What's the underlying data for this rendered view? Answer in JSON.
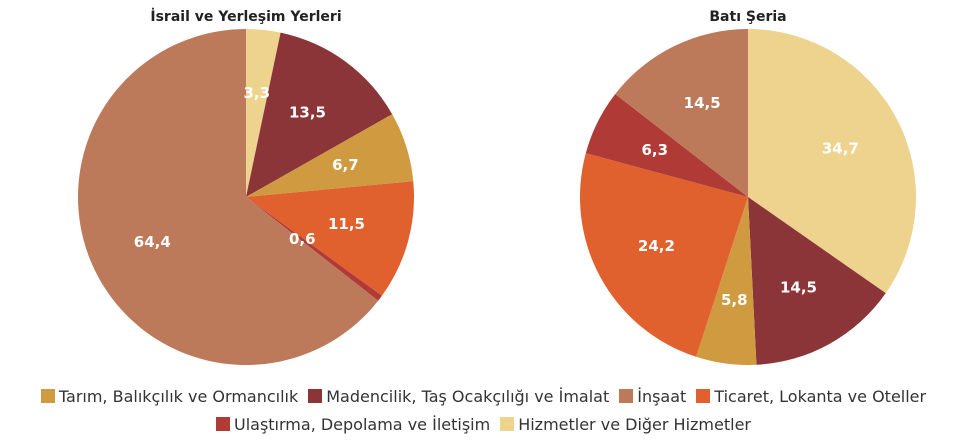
{
  "chart_data": [
    {
      "type": "pie",
      "title": "İsrail ve Yerleşim Yerleri",
      "categories": [
        "Tarım, Balıkçılık ve Ormancılık",
        "Madencilik, Taş Ocakçılığı ve İmalat",
        "İnşaat",
        "Ticaret, Lokanta ve Oteller",
        "Ulaştırma, Depolama ve İletişim",
        "Hizmetler ve Diğer Hizmetler"
      ],
      "values": [
        6.7,
        13.5,
        64.4,
        11.5,
        0.6,
        3.3
      ],
      "value_labels": [
        "6,7",
        "13,5",
        "64,4",
        "11,5",
        "0,6",
        "3,3"
      ],
      "colors": [
        "#d09a40",
        "#8b3538",
        "#bd7a5a",
        "#e0602e",
        "#b03a35",
        "#eed38f"
      ]
    },
    {
      "type": "pie",
      "title": "Batı Şeria",
      "categories": [
        "Tarım, Balıkçılık ve Ormancılık",
        "Madencilik, Taş Ocakçılığı ve İmalat",
        "İnşaat",
        "Ticaret, Lokanta ve Oteller",
        "Ulaştırma, Depolama ve İletişim",
        "Hizmetler ve Diğer Hizmetler"
      ],
      "values": [
        5.8,
        14.5,
        14.5,
        24.2,
        6.3,
        34.7
      ],
      "value_labels": [
        "5,8",
        "14,5",
        "14,5",
        "24,2",
        "6,3",
        "34,7"
      ],
      "colors": [
        "#d09a40",
        "#8b3538",
        "#bd7a5a",
        "#e0602e",
        "#b03a35",
        "#eed38f"
      ]
    }
  ]
}
